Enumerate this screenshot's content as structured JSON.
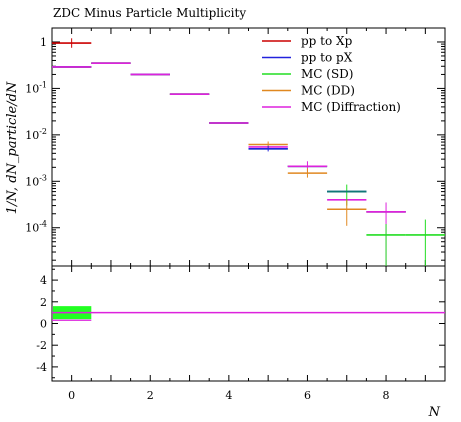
{
  "chart_data": {
    "type": "line",
    "title": "ZDC Minus Particle Multiplicity",
    "ylabel": "1/N, dN_particle/dN",
    "xlabel": "N",
    "xlim": [
      -0.5,
      9.5
    ],
    "ylim_log": [
      1.5e-05,
      2
    ],
    "ratio_ylim": [
      -5.3,
      5.3
    ],
    "x_ticks": [
      "0",
      "2",
      "4",
      "6",
      "8"
    ],
    "y_ticks": [
      "1",
      "10^-1",
      "10^-2",
      "10^-3",
      "10^-4"
    ],
    "ratio_ticks": [
      "4",
      "2",
      "0",
      "-2",
      "-4"
    ],
    "legend_position": "top-right",
    "series": [
      {
        "name": "pp to Xp",
        "color": "#cc0000",
        "values": [
          0.95,
          null,
          null,
          null,
          null,
          null,
          null,
          null,
          null,
          null
        ]
      },
      {
        "name": "pp to pX",
        "color": "#2222dd",
        "values": [
          0.29,
          0.35,
          0.2,
          0.075,
          0.018,
          0.005,
          0.0021,
          0.0006,
          0.00022,
          null
        ]
      },
      {
        "name": "MC (SD)",
        "color": "#22dd22",
        "values": [
          0.29,
          0.35,
          0.2,
          0.075,
          0.018,
          0.005,
          0.0021,
          0.0006,
          7e-05,
          7e-05
        ]
      },
      {
        "name": "MC (DD)",
        "color": "#e08820",
        "values": [
          0.29,
          0.35,
          0.2,
          0.075,
          0.018,
          0.0062,
          0.0015,
          0.00025,
          0.00022,
          null
        ]
      },
      {
        "name": "MC (Diffraction)",
        "color": "#dd22dd",
        "values": [
          0.29,
          0.35,
          0.2,
          0.075,
          0.018,
          0.0055,
          0.0021,
          0.0004,
          0.00022,
          null
        ]
      }
    ],
    "x": [
      0,
      1,
      2,
      3,
      4,
      5,
      6,
      7,
      8,
      9
    ],
    "ratio": {
      "value": 1,
      "band_color": "#22ff22"
    }
  }
}
